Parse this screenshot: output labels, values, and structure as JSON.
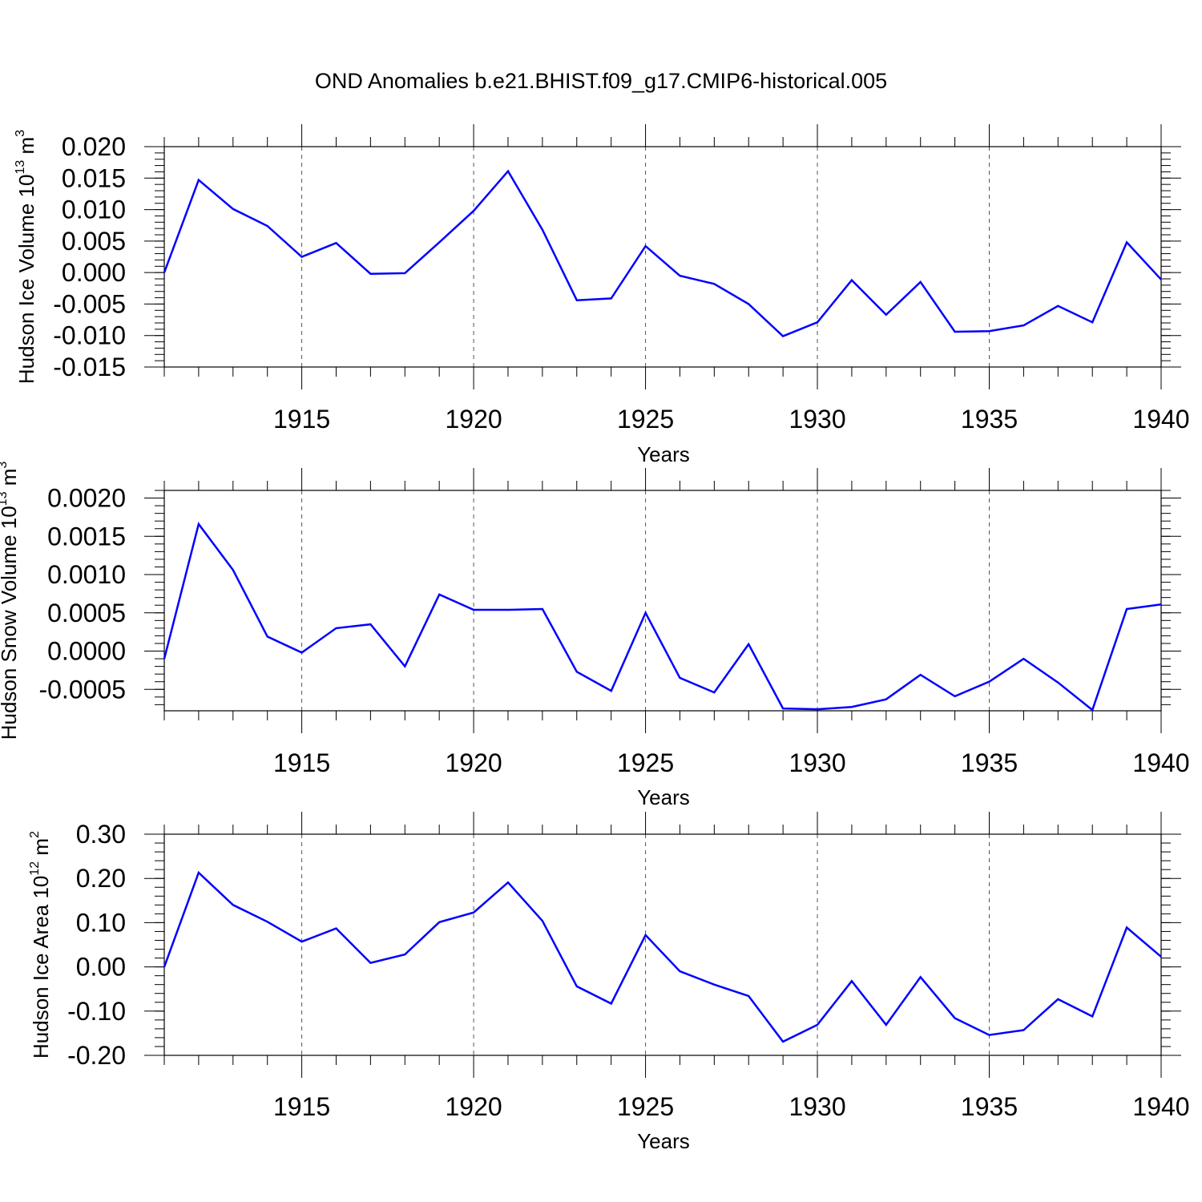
{
  "title": "OND Anomalies b.e21.BHIST.f09_g17.CMIP6-historical.005",
  "chart_data": [
    {
      "type": "line",
      "ylabel": "Hudson Ice Volume 10",
      "ylabel_exp": "13",
      "ylabel_unit": " m",
      "ylabel_unit_exp": "3",
      "xlabel": "Years",
      "xlim": [
        1911,
        1940
      ],
      "ylim": [
        -0.015,
        0.02
      ],
      "yticks": [
        0.02,
        0.015,
        0.01,
        0.005,
        0.0,
        -0.005,
        -0.01,
        -0.015
      ],
      "ytick_labels": [
        "0.020",
        "0.015",
        "0.010",
        "0.005",
        "0.000",
        "-0.005",
        "-0.010",
        "-0.015"
      ],
      "xticks": [
        1915,
        1920,
        1925,
        1930,
        1935,
        1940
      ],
      "xtick_labels": [
        "1915",
        "1920",
        "1925",
        "1930",
        "1935",
        "1940"
      ],
      "grid_x": true,
      "line_color": "#0000ff",
      "x": [
        1911,
        1912,
        1913,
        1914,
        1915,
        1916,
        1917,
        1918,
        1919,
        1920,
        1921,
        1922,
        1923,
        1924,
        1925,
        1926,
        1927,
        1928,
        1929,
        1930,
        1931,
        1932,
        1933,
        1934,
        1935,
        1936,
        1937,
        1938,
        1939,
        1940
      ],
      "values": [
        0.0,
        0.0147,
        0.0101,
        0.0074,
        0.0025,
        0.0047,
        -0.0002,
        -0.0001,
        0.0048,
        0.0098,
        0.0161,
        0.0068,
        -0.0044,
        -0.0041,
        0.0042,
        -0.0005,
        -0.0018,
        -0.005,
        -0.0101,
        -0.0079,
        -0.0012,
        -0.0067,
        -0.0015,
        -0.0094,
        -0.0093,
        -0.0084,
        -0.0053,
        -0.0079,
        0.0048,
        -0.0011
      ]
    },
    {
      "type": "line",
      "ylabel": "Hudson Snow Volume 10",
      "ylabel_exp": "13",
      "ylabel_unit": " m",
      "ylabel_unit_exp": "3",
      "xlabel": "Years",
      "xlim": [
        1911,
        1940
      ],
      "ylim": [
        -0.00078,
        0.0021
      ],
      "yticks": [
        0.002,
        0.0015,
        0.001,
        0.0005,
        0.0,
        -0.0005
      ],
      "ytick_labels": [
        "0.0020",
        "0.0015",
        "0.0010",
        "0.0005",
        "0.0000",
        "-0.0005"
      ],
      "xticks": [
        1915,
        1920,
        1925,
        1930,
        1935,
        1940
      ],
      "xtick_labels": [
        "1915",
        "1920",
        "1925",
        "1930",
        "1935",
        "1940"
      ],
      "grid_x": true,
      "line_color": "#0000ff",
      "x": [
        1911,
        1912,
        1913,
        1914,
        1915,
        1916,
        1917,
        1918,
        1919,
        1920,
        1921,
        1922,
        1923,
        1924,
        1925,
        1926,
        1927,
        1928,
        1929,
        1930,
        1931,
        1932,
        1933,
        1934,
        1935,
        1936,
        1937,
        1938,
        1939,
        1940
      ],
      "values": [
        -0.0001,
        0.00166,
        0.00106,
        0.00019,
        -2e-05,
        0.0003,
        0.00035,
        -0.0002,
        0.00074,
        0.00054,
        0.00054,
        0.00055,
        -0.00027,
        -0.00052,
        0.0005,
        -0.00035,
        -0.00054,
        9e-05,
        -0.00075,
        -0.00076,
        -0.00073,
        -0.00063,
        -0.00031,
        -0.00059,
        -0.0004,
        -0.0001,
        -0.00041,
        -0.00077,
        0.00055,
        0.00061
      ]
    },
    {
      "type": "line",
      "ylabel": "Hudson Ice Area 10",
      "ylabel_exp": "12",
      "ylabel_unit": " m",
      "ylabel_unit_exp": "2",
      "xlabel": "Years",
      "xlim": [
        1911,
        1940
      ],
      "ylim": [
        -0.2,
        0.3
      ],
      "yticks": [
        0.3,
        0.2,
        0.1,
        0.0,
        -0.1,
        -0.2
      ],
      "ytick_labels": [
        "0.30",
        "0.20",
        "0.10",
        "0.00",
        "-0.10",
        "-0.20"
      ],
      "xticks": [
        1915,
        1920,
        1925,
        1930,
        1935,
        1940
      ],
      "xtick_labels": [
        "1915",
        "1920",
        "1925",
        "1930",
        "1935",
        "1940"
      ],
      "grid_x": true,
      "line_color": "#0000ff",
      "x": [
        1911,
        1912,
        1913,
        1914,
        1915,
        1916,
        1917,
        1918,
        1919,
        1920,
        1921,
        1922,
        1923,
        1924,
        1925,
        1926,
        1927,
        1928,
        1929,
        1930,
        1931,
        1932,
        1933,
        1934,
        1935,
        1936,
        1937,
        1938,
        1939,
        1940
      ],
      "values": [
        0.0,
        0.213,
        0.14,
        0.102,
        0.057,
        0.087,
        0.009,
        0.028,
        0.101,
        0.123,
        0.191,
        0.104,
        -0.044,
        -0.083,
        0.072,
        -0.01,
        -0.04,
        -0.066,
        -0.169,
        -0.131,
        -0.032,
        -0.131,
        -0.023,
        -0.116,
        -0.154,
        -0.143,
        -0.073,
        -0.112,
        0.089,
        0.023
      ]
    }
  ]
}
